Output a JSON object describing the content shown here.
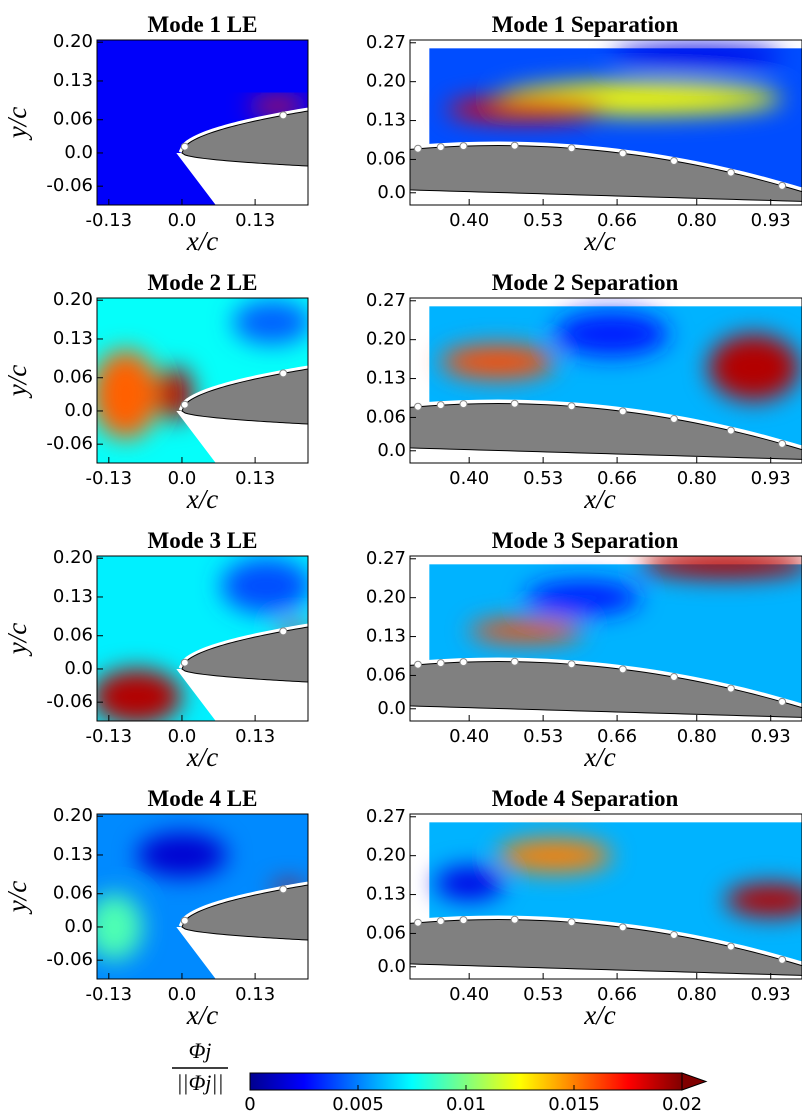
{
  "chart_data": [
    {
      "type": "field",
      "title": "Mode 1 LE",
      "xlabel": "x/c",
      "ylabel": "y/c",
      "xlim": [
        -0.151,
        0.224
      ],
      "ylim": [
        -0.094,
        0.204
      ],
      "xticks": [
        -0.13,
        {
          "value": 0,
          "label": "0.0"
        },
        0.13
      ],
      "yticks": [
        -0.06,
        {
          "value": 0,
          "label": "0.0"
        },
        0.06,
        0.13,
        {
          "value": 0.2,
          "label": "0.20"
        }
      ]
    },
    {
      "type": "field",
      "title": "Mode 1 Separation",
      "xlabel": "x/c",
      "xlim": [
        0.296,
        0.985
      ],
      "ylim": [
        -0.022,
        0.275
      ],
      "xticks": [
        {
          "value": 0.4,
          "label": "0.40"
        },
        0.53,
        0.66,
        {
          "value": 0.8,
          "label": "0.80"
        },
        0.93
      ],
      "yticks": [
        {
          "value": 0,
          "label": "0.0"
        },
        0.06,
        0.13,
        {
          "value": 0.2,
          "label": "0.20"
        },
        0.27
      ]
    },
    {
      "type": "field",
      "title": "Mode 2 LE",
      "xlabel": "x/c",
      "ylabel": "y/c",
      "xlim": [
        -0.151,
        0.224
      ],
      "ylim": [
        -0.094,
        0.204
      ],
      "xticks": [
        -0.13,
        {
          "value": 0,
          "label": "0.0"
        },
        0.13
      ],
      "yticks": [
        -0.06,
        {
          "value": 0,
          "label": "0.0"
        },
        0.06,
        0.13,
        {
          "value": 0.2,
          "label": "0.20"
        }
      ]
    },
    {
      "type": "field",
      "title": "Mode 2 Separation",
      "xlabel": "x/c",
      "xlim": [
        0.296,
        0.985
      ],
      "ylim": [
        -0.022,
        0.275
      ],
      "xticks": [
        {
          "value": 0.4,
          "label": "0.40"
        },
        0.53,
        0.66,
        {
          "value": 0.8,
          "label": "0.80"
        },
        0.93
      ],
      "yticks": [
        {
          "value": 0,
          "label": "0.0"
        },
        0.06,
        0.13,
        {
          "value": 0.2,
          "label": "0.20"
        },
        0.27
      ]
    },
    {
      "type": "field",
      "title": "Mode 3 LE",
      "xlabel": "x/c",
      "ylabel": "y/c",
      "xlim": [
        -0.151,
        0.224
      ],
      "ylim": [
        -0.094,
        0.204
      ],
      "xticks": [
        -0.13,
        {
          "value": 0,
          "label": "0.0"
        },
        0.13
      ],
      "yticks": [
        -0.06,
        {
          "value": 0,
          "label": "0.0"
        },
        0.06,
        0.13,
        {
          "value": 0.2,
          "label": "0.20"
        }
      ]
    },
    {
      "type": "field",
      "title": "Mode 3 Separation",
      "xlabel": "x/c",
      "xlim": [
        0.296,
        0.985
      ],
      "ylim": [
        -0.022,
        0.275
      ],
      "xticks": [
        {
          "value": 0.4,
          "label": "0.40"
        },
        0.53,
        0.66,
        {
          "value": 0.8,
          "label": "0.80"
        },
        0.93
      ],
      "yticks": [
        {
          "value": 0,
          "label": "0.0"
        },
        0.06,
        0.13,
        {
          "value": 0.2,
          "label": "0.20"
        },
        0.27
      ]
    },
    {
      "type": "field",
      "title": "Mode 4 LE",
      "xlabel": "x/c",
      "ylabel": "y/c",
      "xlim": [
        -0.151,
        0.224
      ],
      "ylim": [
        -0.094,
        0.204
      ],
      "xticks": [
        -0.13,
        {
          "value": 0,
          "label": "0.0"
        },
        0.13
      ],
      "yticks": [
        -0.06,
        {
          "value": 0,
          "label": "0.0"
        },
        0.06,
        0.13,
        {
          "value": 0.2,
          "label": "0.20"
        }
      ]
    },
    {
      "type": "field",
      "title": "Mode 4 Separation",
      "xlabel": "x/c",
      "xlim": [
        0.296,
        0.985
      ],
      "ylim": [
        -0.022,
        0.275
      ],
      "xticks": [
        {
          "value": 0.4,
          "label": "0.40"
        },
        0.53,
        0.66,
        {
          "value": 0.8,
          "label": "0.80"
        },
        0.93
      ],
      "yticks": [
        {
          "value": 0,
          "label": "0.0"
        },
        0.06,
        0.13,
        {
          "value": 0.2,
          "label": "0.20"
        },
        0.27
      ]
    }
  ],
  "colorbar": {
    "label_numerator": "Φj",
    "label_denominator": "||Φj||",
    "lim": [
      0,
      0.02
    ],
    "ticks": [
      0,
      0.005,
      0.01,
      0.015,
      0.02
    ]
  }
}
